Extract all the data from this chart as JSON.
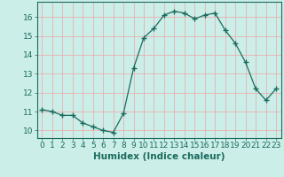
{
  "x": [
    0,
    1,
    2,
    3,
    4,
    5,
    6,
    7,
    8,
    9,
    10,
    11,
    12,
    13,
    14,
    15,
    16,
    17,
    18,
    19,
    20,
    21,
    22,
    23
  ],
  "y": [
    11.1,
    11.0,
    10.8,
    10.8,
    10.4,
    10.2,
    10.0,
    9.9,
    10.9,
    13.3,
    14.9,
    15.4,
    16.1,
    16.3,
    16.2,
    15.9,
    16.1,
    16.2,
    15.3,
    14.6,
    13.6,
    12.2,
    11.6,
    12.2
  ],
  "line_color": "#1a6b5e",
  "marker": "+",
  "marker_size": 4,
  "marker_lw": 1.0,
  "bg_color": "#cceee8",
  "grid_color_major": "#e8b0b0",
  "grid_color_minor": "#ddd8d8",
  "xlabel": "Humidex (Indice chaleur)",
  "xlim": [
    -0.5,
    23.5
  ],
  "ylim": [
    9.6,
    16.8
  ],
  "yticks": [
    10,
    11,
    12,
    13,
    14,
    15,
    16
  ],
  "xticks": [
    0,
    1,
    2,
    3,
    4,
    5,
    6,
    7,
    8,
    9,
    10,
    11,
    12,
    13,
    14,
    15,
    16,
    17,
    18,
    19,
    20,
    21,
    22,
    23
  ],
  "tick_fontsize": 6.5,
  "xlabel_fontsize": 7.5,
  "line_width": 0.9
}
